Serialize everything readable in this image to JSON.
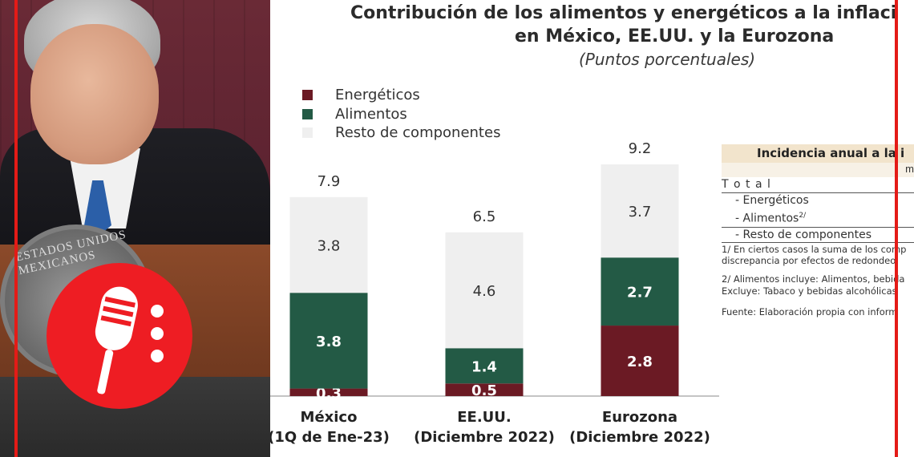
{
  "chart_data": {
    "type": "bar",
    "stacked": true,
    "title": "Contribución de los alimentos y energéticos a la inflaci",
    "title_line2": "en México, EE.UU. y la Eurozona",
    "subtitle": "(Puntos porcentuales)",
    "categories": [
      {
        "line1": "México",
        "line2": "(1Q de Ene-23)"
      },
      {
        "line1": "EE.UU.",
        "line2": "(Diciembre 2022)"
      },
      {
        "line1": "Eurozona",
        "line2": "(Diciembre 2022)"
      }
    ],
    "series": [
      {
        "name": "Energéticos",
        "color": "#6b1a24",
        "values": [
          0.3,
          0.5,
          2.8
        ],
        "labels": [
          "0.3",
          "0.5",
          "2.8"
        ]
      },
      {
        "name": "Alimentos",
        "color": "#235a45",
        "values": [
          3.8,
          1.4,
          2.7
        ],
        "labels": [
          "3.8",
          "1.4",
          "2.7"
        ]
      },
      {
        "name": "Resto de componentes",
        "color": "#efefef",
        "values": [
          3.8,
          4.6,
          3.7
        ],
        "labels": [
          "3.8",
          "4.6",
          "3.7"
        ]
      }
    ],
    "totals": [
      "7.9",
      "6.5",
      "9.2"
    ],
    "ylim": [
      0,
      9.2
    ],
    "grid": false,
    "legend_position": "top-left"
  },
  "table": {
    "header": "Incidencia anual a la i",
    "sub_header": "m",
    "rows": [
      {
        "label": "T o t a l"
      },
      {
        "label": "- Energéticos"
      },
      {
        "label": "- Alimentos",
        "sup": "2/"
      },
      {
        "label": "- Resto de componentes"
      }
    ],
    "notes": [
      "1/ En ciertos casos la suma de los comp",
      "discrepancia por efectos de redondeo.",
      "2/ Alimentos incluye: Alimentos, bebida",
      "Excluye: Tabaco y bebidas alcohólicas",
      "Fuente: Elaboración propia con inform"
    ]
  },
  "photo": {
    "seal_text": "ESTADOS UNIDOS MEXICANOS"
  },
  "colors": {
    "frame_red": "#e41b17",
    "badge_red": "#ee1d23",
    "energeticos": "#6b1a24",
    "alimentos": "#235a45",
    "resto": "#efefef"
  }
}
